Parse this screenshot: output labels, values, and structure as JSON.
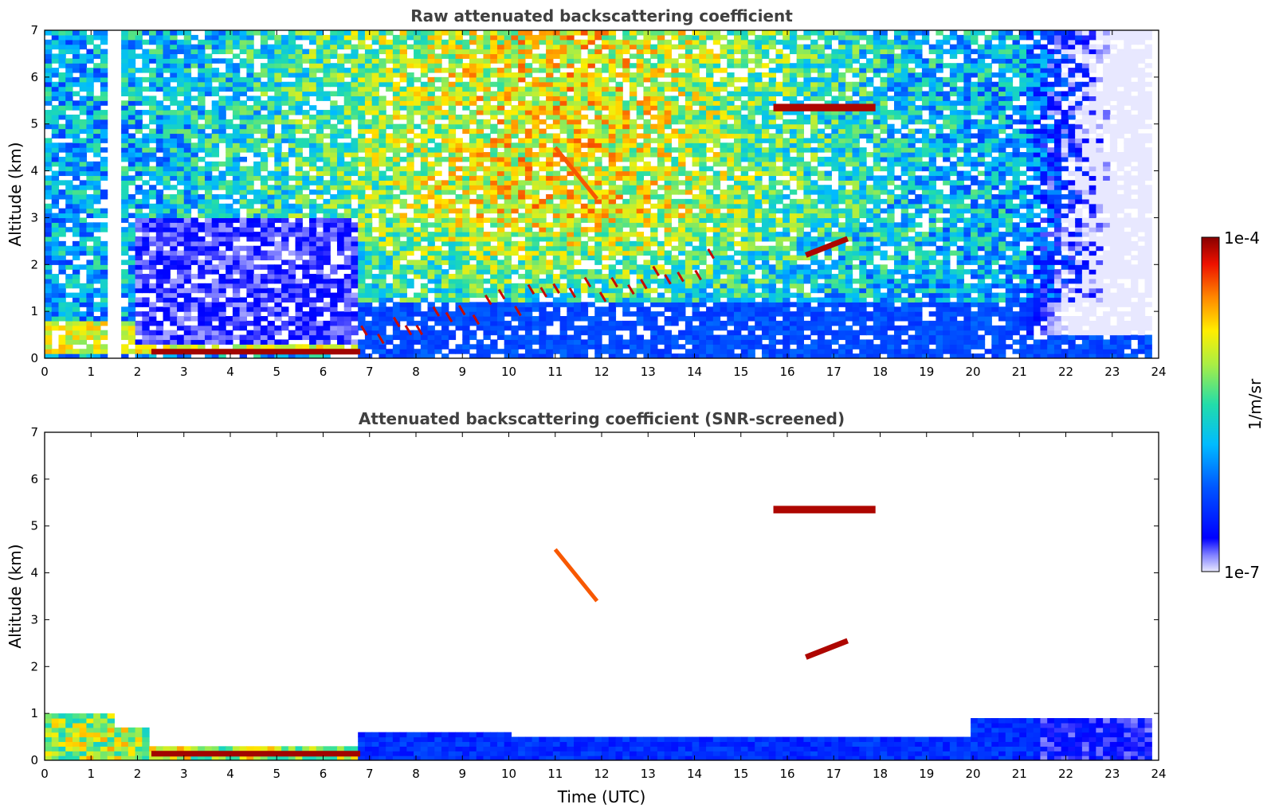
{
  "chart_data": [
    {
      "type": "heatmap",
      "title": "Raw attenuated backscattering coefficient",
      "xlabel": "",
      "ylabel": "Altitude (km)",
      "xlim": [
        0,
        24
      ],
      "ylim": [
        0,
        7
      ],
      "x_ticks": [
        "0",
        "1",
        "2",
        "3",
        "4",
        "5",
        "6",
        "7",
        "8",
        "9",
        "10",
        "11",
        "12",
        "13",
        "14",
        "15",
        "16",
        "17",
        "18",
        "19",
        "20",
        "21",
        "22",
        "23",
        "24"
      ],
      "y_ticks": [
        "0",
        "1",
        "2",
        "3",
        "4",
        "5",
        "6",
        "7"
      ],
      "features": [
        {
          "kind": "noise-field",
          "t_start": 0,
          "t_end": 23.8,
          "alt_min": 0,
          "alt_max": 7
        },
        {
          "kind": "boundary-layer",
          "t_start": 0,
          "t_end": 6.8,
          "alt_top": 0.8
        },
        {
          "kind": "data-gap",
          "t": 1.5
        },
        {
          "kind": "cloud-layer",
          "t_start": 15.7,
          "t_end": 17.9,
          "alt": 5.35
        },
        {
          "kind": "cloud-segment",
          "t_start": 16.4,
          "t_end": 17.3,
          "alt_start": 2.2,
          "alt_end": 2.55
        },
        {
          "kind": "boundary-layer-clouds",
          "t_start": 6.8,
          "t_end": 14.5,
          "alt_start": 0.4,
          "alt_end": 2.0
        },
        {
          "kind": "fall-streak",
          "t_start": 11.0,
          "t_end": 11.9,
          "alt_start": 4.5,
          "alt_end": 3.4
        }
      ]
    },
    {
      "type": "heatmap",
      "title": "Attenuated backscattering coefficient (SNR-screened)",
      "xlabel": "Time (UTC)",
      "ylabel": "Altitude (km)",
      "xlim": [
        0,
        24
      ],
      "ylim": [
        0,
        7
      ],
      "x_ticks": [
        "0",
        "1",
        "2",
        "3",
        "4",
        "5",
        "6",
        "7",
        "8",
        "9",
        "10",
        "11",
        "12",
        "13",
        "14",
        "15",
        "16",
        "17",
        "18",
        "19",
        "20",
        "21",
        "22",
        "23",
        "24"
      ],
      "y_ticks": [
        "0",
        "1",
        "2",
        "3",
        "4",
        "5",
        "6",
        "7"
      ],
      "features": [
        {
          "kind": "boundary-layer",
          "t_start": 0,
          "t_end": 6.8,
          "alt_top": 0.8
        },
        {
          "kind": "aerosol-layer",
          "t_start": 6.8,
          "t_end": 23.8,
          "alt_top": 1.0
        },
        {
          "kind": "cloud-layer",
          "t_start": 15.7,
          "t_end": 17.9,
          "alt": 5.35
        },
        {
          "kind": "cloud-segment",
          "t_start": 16.4,
          "t_end": 17.3,
          "alt_start": 2.2,
          "alt_end": 2.55
        },
        {
          "kind": "fall-streak",
          "t_start": 11.0,
          "t_end": 11.9,
          "alt_start": 4.5,
          "alt_end": 3.4
        }
      ]
    }
  ],
  "colorbar": {
    "label": "1/m/sr",
    "max_label": "1e-4",
    "min_label": "1e-7",
    "scale": "log",
    "colormap": "jet"
  }
}
